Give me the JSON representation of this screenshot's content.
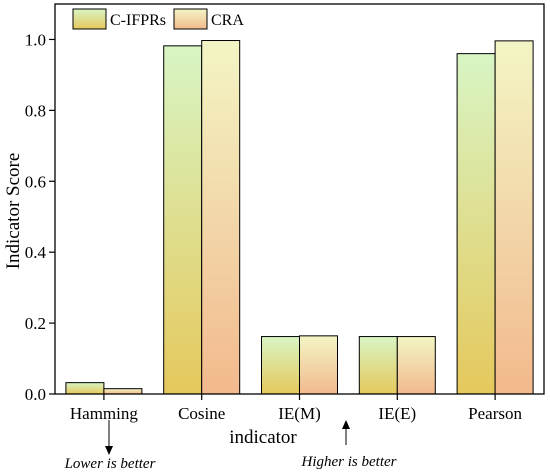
{
  "chart_data": {
    "type": "bar",
    "categories": [
      "Hamming",
      "Cosine",
      "IE(M)",
      "IE(E)",
      "Pearson"
    ],
    "series": [
      {
        "name": "C-IFPRs",
        "values": [
          0.032,
          0.982,
          0.162,
          0.162,
          0.96
        ],
        "gradient_top": "#d8f5c4",
        "gradient_bottom": "#e5c85c"
      },
      {
        "name": "CRA",
        "values": [
          0.015,
          0.997,
          0.164,
          0.162,
          0.996
        ],
        "gradient_top": "#f3f5c4",
        "gradient_bottom": "#f2b98d"
      }
    ],
    "ylabel": "Indicator Score",
    "xlabel": "indicator",
    "ylim": [
      0.0,
      1.1
    ],
    "yticks": [
      "0.0",
      "0.2",
      "0.4",
      "0.6",
      "0.8",
      "1.0"
    ],
    "legend_position": "top-left",
    "grid": false,
    "annotations": {
      "lower": "Lower is better",
      "higher": "Higher is better"
    }
  }
}
